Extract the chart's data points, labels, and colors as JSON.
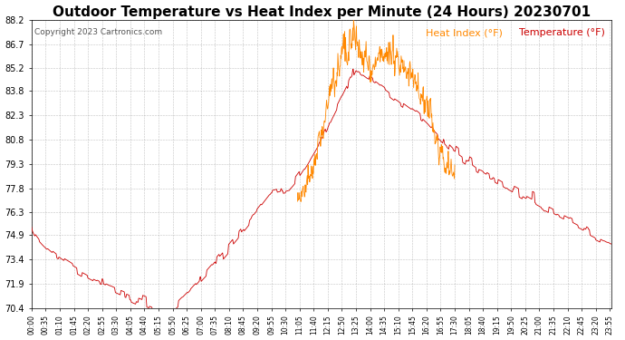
{
  "title": "Outdoor Temperature vs Heat Index per Minute (24 Hours) 20230701",
  "copyright_text": "Copyright 2023 Cartronics.com",
  "legend_heat_index": "Heat Index (°F)",
  "legend_temperature": "Temperature (°F)",
  "temp_color": "#cc0000",
  "heat_index_color": "#ff8800",
  "background_color": "#ffffff",
  "grid_color": "#999999",
  "ylim_min": 70.4,
  "ylim_max": 88.2,
  "yticks": [
    70.4,
    71.9,
    73.4,
    74.9,
    76.3,
    77.8,
    79.3,
    80.8,
    82.3,
    83.8,
    85.2,
    86.7,
    88.2
  ],
  "xtick_labels": [
    "00:00",
    "00:35",
    "01:10",
    "01:45",
    "02:20",
    "02:55",
    "03:30",
    "04:05",
    "04:40",
    "05:15",
    "05:50",
    "06:25",
    "07:00",
    "07:35",
    "08:10",
    "08:45",
    "09:20",
    "09:55",
    "10:30",
    "11:05",
    "11:40",
    "12:15",
    "12:50",
    "13:25",
    "14:00",
    "14:35",
    "15:10",
    "15:45",
    "16:20",
    "16:55",
    "17:30",
    "18:05",
    "18:40",
    "19:15",
    "19:50",
    "20:25",
    "21:00",
    "21:35",
    "22:10",
    "22:45",
    "23:20",
    "23:55"
  ],
  "title_fontsize": 11,
  "copyright_fontsize": 6.5,
  "legend_fontsize": 8,
  "tick_label_fontsize": 5.5,
  "ytick_label_fontsize": 7
}
